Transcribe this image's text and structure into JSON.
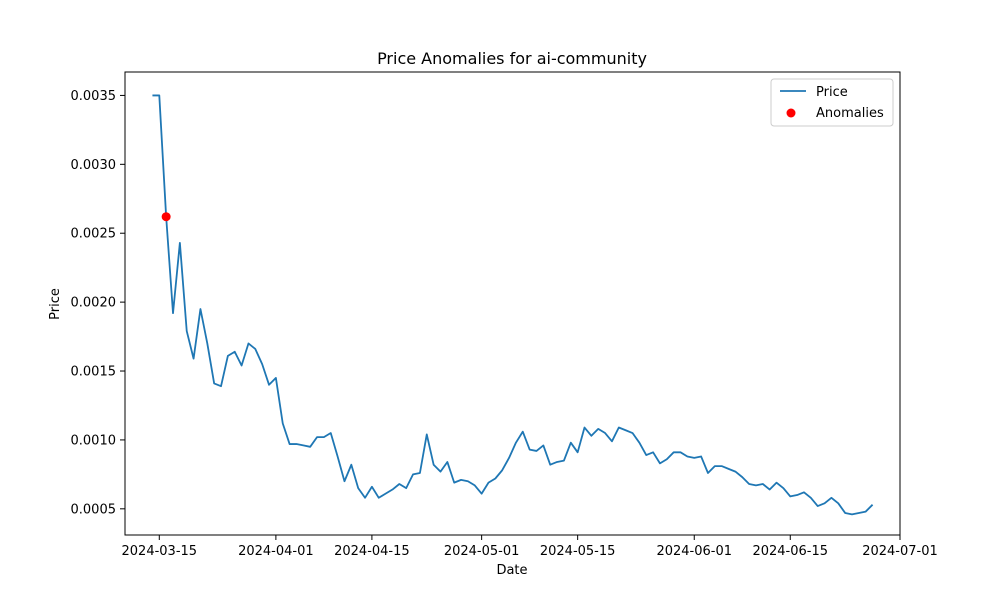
{
  "chart_data": {
    "type": "line",
    "title": "Price Anomalies for ai-community",
    "xlabel": "Date",
    "ylabel": "Price",
    "ylim": [
      0.00031,
      0.00367
    ],
    "xlim": [
      "2024-03-10",
      "2024-07-01"
    ],
    "x_ticks": [
      "2024-03-15",
      "2024-04-01",
      "2024-04-15",
      "2024-05-01",
      "2024-05-15",
      "2024-06-01",
      "2024-06-15",
      "2024-07-01"
    ],
    "y_ticks": [
      "0.0005",
      "0.0010",
      "0.0015",
      "0.0020",
      "0.0025",
      "0.0030",
      "0.0035"
    ],
    "legend_position": "top-right",
    "grid": false,
    "series": [
      {
        "name": "Price",
        "color": "#1f77b4",
        "points": [
          [
            "2024-03-14",
            0.0035
          ],
          [
            "2024-03-15",
            0.0035
          ],
          [
            "2024-03-16",
            0.00262
          ],
          [
            "2024-03-17",
            0.00192
          ],
          [
            "2024-03-18",
            0.00243
          ],
          [
            "2024-03-19",
            0.00179
          ],
          [
            "2024-03-20",
            0.00159
          ],
          [
            "2024-03-21",
            0.00195
          ],
          [
            "2024-03-22",
            0.0017
          ],
          [
            "2024-03-23",
            0.00141
          ],
          [
            "2024-03-24",
            0.00139
          ],
          [
            "2024-03-25",
            0.00161
          ],
          [
            "2024-03-26",
            0.00164
          ],
          [
            "2024-03-27",
            0.00154
          ],
          [
            "2024-03-28",
            0.0017
          ],
          [
            "2024-03-29",
            0.00166
          ],
          [
            "2024-03-30",
            0.00155
          ],
          [
            "2024-03-31",
            0.0014
          ],
          [
            "2024-04-01",
            0.00145
          ],
          [
            "2024-04-02",
            0.00112
          ],
          [
            "2024-04-03",
            0.00097
          ],
          [
            "2024-04-04",
            0.00097
          ],
          [
            "2024-04-05",
            0.00096
          ],
          [
            "2024-04-06",
            0.00095
          ],
          [
            "2024-04-07",
            0.00102
          ],
          [
            "2024-04-08",
            0.00102
          ],
          [
            "2024-04-09",
            0.00105
          ],
          [
            "2024-04-10",
            0.00088
          ],
          [
            "2024-04-11",
            0.0007
          ],
          [
            "2024-04-12",
            0.00082
          ],
          [
            "2024-04-13",
            0.00065
          ],
          [
            "2024-04-14",
            0.00058
          ],
          [
            "2024-04-15",
            0.00066
          ],
          [
            "2024-04-16",
            0.00058
          ],
          [
            "2024-04-17",
            0.00061
          ],
          [
            "2024-04-18",
            0.00064
          ],
          [
            "2024-04-19",
            0.00068
          ],
          [
            "2024-04-20",
            0.00065
          ],
          [
            "2024-04-21",
            0.00075
          ],
          [
            "2024-04-22",
            0.00076
          ],
          [
            "2024-04-23",
            0.00104
          ],
          [
            "2024-04-24",
            0.00082
          ],
          [
            "2024-04-25",
            0.00077
          ],
          [
            "2024-04-26",
            0.00084
          ],
          [
            "2024-04-27",
            0.00069
          ],
          [
            "2024-04-28",
            0.00071
          ],
          [
            "2024-04-29",
            0.0007
          ],
          [
            "2024-04-30",
            0.00067
          ],
          [
            "2024-05-01",
            0.00061
          ],
          [
            "2024-05-02",
            0.00069
          ],
          [
            "2024-05-03",
            0.00072
          ],
          [
            "2024-05-04",
            0.00078
          ],
          [
            "2024-05-05",
            0.00087
          ],
          [
            "2024-05-06",
            0.00098
          ],
          [
            "2024-05-07",
            0.00106
          ],
          [
            "2024-05-08",
            0.00093
          ],
          [
            "2024-05-09",
            0.00092
          ],
          [
            "2024-05-10",
            0.00096
          ],
          [
            "2024-05-11",
            0.00082
          ],
          [
            "2024-05-12",
            0.00084
          ],
          [
            "2024-05-13",
            0.00085
          ],
          [
            "2024-05-14",
            0.00098
          ],
          [
            "2024-05-15",
            0.00091
          ],
          [
            "2024-05-16",
            0.00109
          ],
          [
            "2024-05-17",
            0.00103
          ],
          [
            "2024-05-18",
            0.00108
          ],
          [
            "2024-05-19",
            0.00105
          ],
          [
            "2024-05-20",
            0.00099
          ],
          [
            "2024-05-21",
            0.00109
          ],
          [
            "2024-05-22",
            0.00107
          ],
          [
            "2024-05-23",
            0.00105
          ],
          [
            "2024-05-24",
            0.00098
          ],
          [
            "2024-05-25",
            0.00089
          ],
          [
            "2024-05-26",
            0.00091
          ],
          [
            "2024-05-27",
            0.00083
          ],
          [
            "2024-05-28",
            0.00086
          ],
          [
            "2024-05-29",
            0.00091
          ],
          [
            "2024-05-30",
            0.00091
          ],
          [
            "2024-05-31",
            0.00088
          ],
          [
            "2024-06-01",
            0.00087
          ],
          [
            "2024-06-02",
            0.00088
          ],
          [
            "2024-06-03",
            0.00076
          ],
          [
            "2024-06-04",
            0.00081
          ],
          [
            "2024-06-05",
            0.00081
          ],
          [
            "2024-06-06",
            0.00079
          ],
          [
            "2024-06-07",
            0.00077
          ],
          [
            "2024-06-08",
            0.00073
          ],
          [
            "2024-06-09",
            0.00068
          ],
          [
            "2024-06-10",
            0.00067
          ],
          [
            "2024-06-11",
            0.00068
          ],
          [
            "2024-06-12",
            0.00064
          ],
          [
            "2024-06-13",
            0.00069
          ],
          [
            "2024-06-14",
            0.00065
          ],
          [
            "2024-06-15",
            0.00059
          ],
          [
            "2024-06-16",
            0.0006
          ],
          [
            "2024-06-17",
            0.00062
          ],
          [
            "2024-06-18",
            0.00058
          ],
          [
            "2024-06-19",
            0.00052
          ],
          [
            "2024-06-20",
            0.00054
          ],
          [
            "2024-06-21",
            0.00058
          ],
          [
            "2024-06-22",
            0.00054
          ],
          [
            "2024-06-23",
            0.00047
          ],
          [
            "2024-06-24",
            0.00046
          ],
          [
            "2024-06-25",
            0.00047
          ],
          [
            "2024-06-26",
            0.00048
          ],
          [
            "2024-06-27",
            0.00053
          ]
        ]
      },
      {
        "name": "Anomalies",
        "color": "#ff0000",
        "type": "scatter",
        "points": [
          [
            "2024-03-16",
            0.00262
          ]
        ]
      }
    ]
  }
}
